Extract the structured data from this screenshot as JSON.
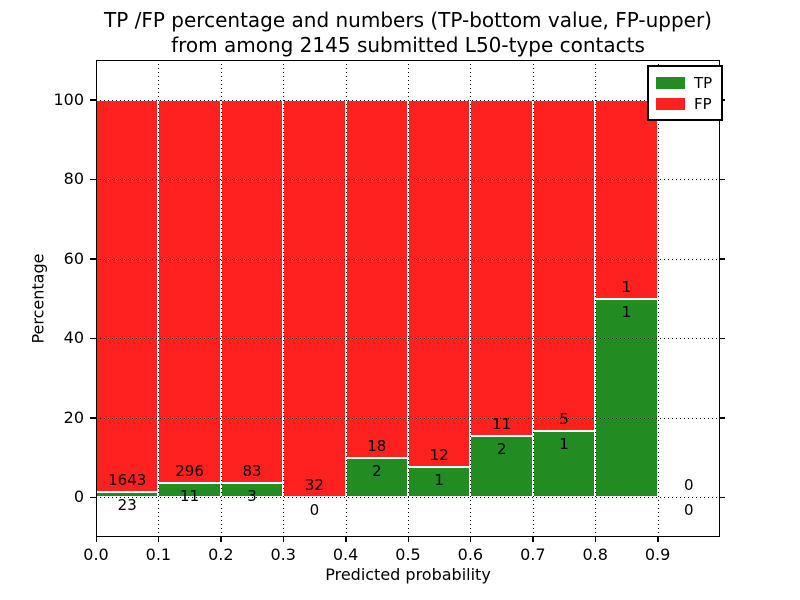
{
  "chart_data": {
    "type": "bar",
    "stacked": true,
    "title_line1": "TP /FP percentage and numbers (TP-bottom value, FP-upper)",
    "title_line2": "from among 2145 submitted L50-type contacts",
    "xlabel": "Predicted probability",
    "ylabel": "Percentage",
    "xlim": [
      0.0,
      1.0
    ],
    "ylim": [
      -10,
      110
    ],
    "xticks": [
      "0.0",
      "0.1",
      "0.2",
      "0.3",
      "0.4",
      "0.5",
      "0.6",
      "0.7",
      "0.8",
      "0.9"
    ],
    "yticks": [
      0,
      20,
      40,
      60,
      80,
      100
    ],
    "grid": true,
    "grid_style": "dotted",
    "legend_position": "upper right",
    "legend": [
      {
        "label": "TP",
        "color": "#228b22"
      },
      {
        "label": "FP",
        "color": "#ff2020"
      }
    ],
    "colors": {
      "tp": "#228b22",
      "fp": "#ff2020",
      "bar_edge": "#ffffff"
    },
    "total_contacts": 2145,
    "bins": [
      {
        "x0": 0.0,
        "x1": 0.1,
        "tp": 23,
        "fp": 1643
      },
      {
        "x0": 0.1,
        "x1": 0.2,
        "tp": 11,
        "fp": 296
      },
      {
        "x0": 0.2,
        "x1": 0.3,
        "tp": 3,
        "fp": 83
      },
      {
        "x0": 0.3,
        "x1": 0.4,
        "tp": 0,
        "fp": 32
      },
      {
        "x0": 0.4,
        "x1": 0.5,
        "tp": 2,
        "fp": 18
      },
      {
        "x0": 0.5,
        "x1": 0.6,
        "tp": 1,
        "fp": 12
      },
      {
        "x0": 0.6,
        "x1": 0.7,
        "tp": 2,
        "fp": 11
      },
      {
        "x0": 0.7,
        "x1": 0.8,
        "tp": 1,
        "fp": 5
      },
      {
        "x0": 0.8,
        "x1": 0.9,
        "tp": 1,
        "fp": 1
      },
      {
        "x0": 0.9,
        "x1": 1.0,
        "tp": 0,
        "fp": 0
      }
    ]
  }
}
